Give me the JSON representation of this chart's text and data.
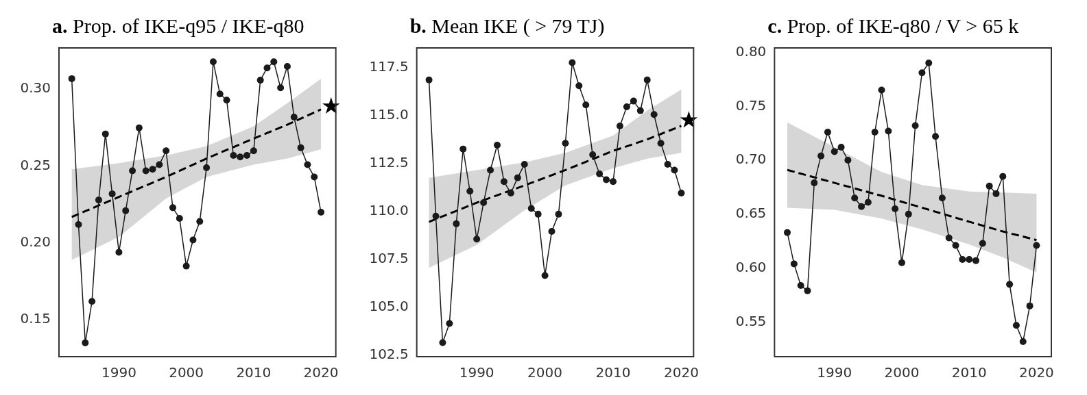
{
  "chart_data": [
    {
      "type": "line",
      "title": "a. Prop. of IKE-q95 / IKE-q80",
      "xlim": [
        1981.1,
        2022.2
      ],
      "xticks": [
        1990,
        2000,
        2010,
        2020
      ],
      "ylim": [
        0.125,
        0.326
      ],
      "yticks": [
        {
          "value": 0.15,
          "label": "0.15"
        },
        {
          "value": 0.2,
          "label": "0.20"
        },
        {
          "value": 0.25,
          "label": "0.25"
        },
        {
          "value": 0.3,
          "label": "0.30"
        }
      ],
      "grid": false,
      "series": [
        {
          "type": "line",
          "color": "#1a1a1a",
          "marker": "circle",
          "line_style": "solid",
          "x": [
            1983,
            1984,
            1985,
            1986,
            1987,
            1988,
            1989,
            1990,
            1991,
            1992,
            1993,
            1994,
            1995,
            1996,
            1997,
            1998,
            1999,
            2000,
            2001,
            2002,
            2003,
            2004,
            2005,
            2006,
            2007,
            2008,
            2009,
            2010,
            2011,
            2012,
            2013,
            2014,
            2015,
            2016,
            2017,
            2018,
            2019,
            2020
          ],
          "values": [
            0.306,
            0.211,
            0.134,
            0.161,
            0.227,
            0.27,
            0.231,
            0.193,
            0.22,
            0.246,
            0.274,
            0.246,
            0.247,
            0.25,
            0.259,
            0.222,
            0.215,
            0.184,
            0.201,
            0.213,
            0.248,
            0.317,
            0.296,
            0.292,
            0.256,
            0.255,
            0.256,
            0.259,
            0.305,
            0.313,
            0.317,
            0.3,
            0.314,
            0.281,
            0.261,
            0.25,
            0.242,
            0.219
          ]
        },
        {
          "type": "line",
          "color": "#000000",
          "marker": "none",
          "line_style": "dashed",
          "x": [
            1983,
            1990,
            1997,
            2003,
            2010,
            2015,
            2020
          ],
          "values": [
            0.216,
            0.229,
            0.242,
            0.254,
            0.267,
            0.276,
            0.286
          ],
          "lower": [
            0.188,
            0.203,
            0.228,
            0.242,
            0.25,
            0.254,
            0.26
          ],
          "upper": [
            0.247,
            0.251,
            0.256,
            0.262,
            0.275,
            0.29,
            0.306
          ]
        },
        {
          "type": "scatter",
          "color": "#000000",
          "marker": "star",
          "x": [
            2021.5
          ],
          "values": [
            0.288
          ]
        }
      ]
    },
    {
      "type": "line",
      "title": "b. Mean IKE ( > 79 TJ)",
      "xlim": [
        1981.2,
        2021.8
      ],
      "xticks": [
        1990,
        2000,
        2010,
        2020
      ],
      "ylim": [
        102.37,
        118.47
      ],
      "yticks": [
        {
          "value": 102.5,
          "label": "102.5"
        },
        {
          "value": 105,
          "label": "105.0"
        },
        {
          "value": 107.5,
          "label": "107.5"
        },
        {
          "value": 110,
          "label": "110.0"
        },
        {
          "value": 112.5,
          "label": "112.5"
        },
        {
          "value": 115,
          "label": "115.0"
        },
        {
          "value": 117.5,
          "label": "117.5"
        }
      ],
      "grid": false,
      "series": [
        {
          "type": "line",
          "color": "#1a1a1a",
          "marker": "circle",
          "line_style": "solid",
          "x": [
            1983,
            1984,
            1985,
            1986,
            1987,
            1988,
            1989,
            1990,
            1991,
            1992,
            1993,
            1994,
            1995,
            1996,
            1997,
            1998,
            1999,
            2000,
            2001,
            2002,
            2003,
            2004,
            2005,
            2006,
            2007,
            2008,
            2009,
            2010,
            2011,
            2012,
            2013,
            2014,
            2015,
            2016,
            2017,
            2018,
            2019,
            2020
          ],
          "values": [
            116.8,
            109.7,
            103.1,
            104.1,
            109.3,
            113.2,
            111.0,
            108.5,
            110.4,
            112.1,
            113.4,
            111.5,
            110.9,
            111.7,
            112.4,
            110.1,
            109.8,
            106.6,
            108.9,
            109.8,
            113.5,
            117.7,
            116.5,
            115.5,
            112.9,
            111.9,
            111.6,
            111.5,
            114.4,
            115.4,
            115.7,
            115.2,
            116.8,
            115.0,
            113.5,
            112.4,
            112.1,
            110.9
          ]
        },
        {
          "type": "line",
          "color": "#000000",
          "marker": "none",
          "line_style": "dashed",
          "x": [
            1983,
            1990,
            1997,
            2003,
            2010,
            2015,
            2020
          ],
          "values": [
            109.4,
            110.4,
            111.3,
            112.1,
            113.1,
            113.7,
            114.4
          ],
          "lower": [
            107.0,
            108.2,
            110.0,
            111.3,
            112.2,
            112.7,
            113.0
          ],
          "upper": [
            111.7,
            112.1,
            112.5,
            113.0,
            113.9,
            115.2,
            116.3
          ]
        },
        {
          "type": "scatter",
          "color": "#000000",
          "marker": "star",
          "x": [
            2021.1
          ],
          "values": [
            114.7
          ]
        }
      ]
    },
    {
      "type": "line",
      "title": "c. Prop. of IKE-q80 / V > 65 k",
      "xlim": [
        1981.1,
        2022.2
      ],
      "xticks": [
        1990,
        2000,
        2010,
        2020
      ],
      "ylim": [
        0.517,
        0.803
      ],
      "yticks": [
        {
          "value": 0.55,
          "label": "0.55"
        },
        {
          "value": 0.6,
          "label": "0.60"
        },
        {
          "value": 0.65,
          "label": "0.65"
        },
        {
          "value": 0.7,
          "label": "0.70"
        },
        {
          "value": 0.75,
          "label": "0.75"
        },
        {
          "value": 0.8,
          "label": "0.80"
        }
      ],
      "grid": false,
      "series": [
        {
          "type": "line",
          "color": "#1a1a1a",
          "marker": "circle",
          "line_style": "solid",
          "x": [
            1983,
            1984,
            1985,
            1986,
            1987,
            1988,
            1989,
            1990,
            1991,
            1992,
            1993,
            1994,
            1995,
            1996,
            1997,
            1998,
            1999,
            2000,
            2001,
            2002,
            2003,
            2004,
            2005,
            2006,
            2007,
            2008,
            2009,
            2010,
            2011,
            2012,
            2013,
            2014,
            2015,
            2016,
            2017,
            2018,
            2019,
            2020
          ],
          "values": [
            0.632,
            0.603,
            0.583,
            0.578,
            0.678,
            0.703,
            0.725,
            0.707,
            0.711,
            0.699,
            0.664,
            0.656,
            0.66,
            0.725,
            0.764,
            0.726,
            0.654,
            0.604,
            0.649,
            0.731,
            0.78,
            0.789,
            0.721,
            0.664,
            0.627,
            0.62,
            0.607,
            0.607,
            0.606,
            0.622,
            0.675,
            0.668,
            0.684,
            0.584,
            0.546,
            0.531,
            0.564,
            0.62
          ]
        },
        {
          "type": "line",
          "color": "#000000",
          "marker": "none",
          "line_style": "dashed",
          "x": [
            1983,
            1990,
            1997,
            2003,
            2010,
            2015,
            2020
          ],
          "values": [
            0.69,
            0.678,
            0.666,
            0.655,
            0.642,
            0.633,
            0.625
          ],
          "lower": [
            0.655,
            0.653,
            0.645,
            0.635,
            0.621,
            0.609,
            0.595
          ],
          "upper": [
            0.734,
            0.711,
            0.688,
            0.676,
            0.67,
            0.669,
            0.668
          ]
        }
      ]
    }
  ]
}
